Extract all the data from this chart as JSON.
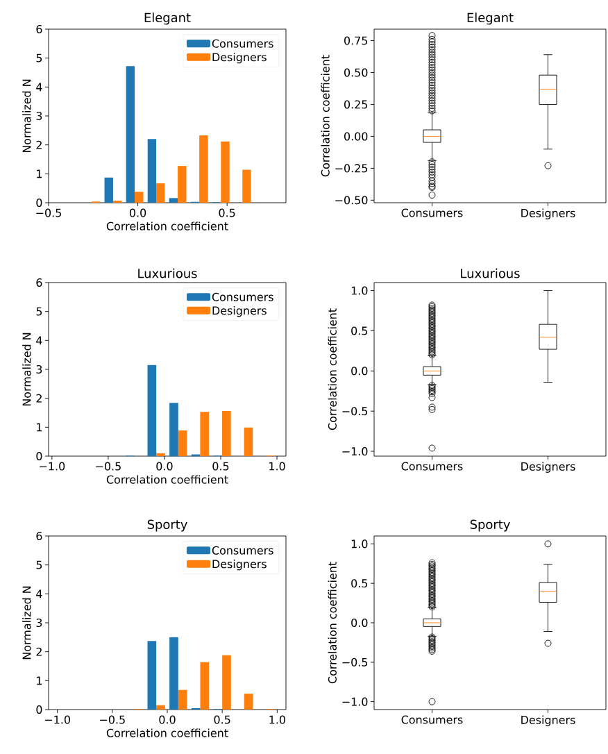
{
  "chart_data": [
    {
      "type": "histogram",
      "title": "Elegant",
      "xlabel": "Correlation coefficient",
      "ylabel": "Normalized N",
      "legend": "top right",
      "bins": [
        -0.44,
        -0.319,
        -0.199,
        -0.078,
        0.043,
        0.163,
        0.284,
        0.405,
        0.526,
        0.646,
        0.767
      ],
      "series": [
        {
          "name": "Consumers",
          "color": "#1f77b4",
          "values": [
            0,
            0,
            0.87,
            4.72,
            2.2,
            0.16,
            0.03,
            0.02,
            0,
            0
          ]
        },
        {
          "name": "Designers",
          "color": "#ff7f0e",
          "values": [
            0,
            0.04,
            0.07,
            0.38,
            0.67,
            1.27,
            2.33,
            2.12,
            1.14,
            0
          ]
        }
      ],
      "xlim": [
        -0.5,
        0.83
      ],
      "xticks": [
        {
          "value": -0.5,
          "label": "−0.5"
        },
        {
          "value": 0,
          "label": "0.0"
        },
        {
          "value": 0.5,
          "label": "0.5"
        }
      ],
      "ylim": [
        0,
        6
      ],
      "yticks": [
        0,
        1,
        2,
        3,
        4,
        5,
        6
      ]
    },
    {
      "type": "box",
      "title": "Elegant",
      "ylabel": "Correlation coefficient",
      "categories": [
        "Consumers",
        "Designers"
      ],
      "boxes": [
        {
          "low": -0.19,
          "q1": -0.047,
          "median": 0,
          "q3": 0.051,
          "high": 0.19,
          "outliers": [
            0.2,
            0.22,
            0.24,
            0.26,
            0.28,
            0.3,
            0.32,
            0.34,
            0.36,
            0.38,
            0.4,
            0.42,
            0.44,
            0.46,
            0.48,
            0.5,
            0.52,
            0.54,
            0.56,
            0.58,
            0.6,
            0.62,
            0.64,
            0.66,
            0.68,
            0.7,
            0.72,
            0.74,
            0.76,
            0.79,
            -0.2,
            -0.22,
            -0.24,
            -0.26,
            -0.28,
            -0.3,
            -0.32,
            -0.35,
            -0.37,
            -0.39,
            -0.4,
            -0.46
          ]
        },
        {
          "low": -0.1,
          "q1": 0.25,
          "median": 0.37,
          "q3": 0.48,
          "high": 0.64,
          "outliers": [
            -0.23
          ]
        }
      ],
      "ylim": [
        -0.52,
        0.84
      ],
      "yticks": [
        {
          "value": -0.5,
          "label": "−0.50"
        },
        {
          "value": -0.25,
          "label": "−0.25"
        },
        {
          "value": 0,
          "label": "0.00"
        },
        {
          "value": 0.25,
          "label": "0.25"
        },
        {
          "value": 0.5,
          "label": "0.50"
        },
        {
          "value": 0.75,
          "label": "0.75"
        }
      ]
    },
    {
      "type": "histogram",
      "title": "Luxurious",
      "xlabel": "Correlation coefficient",
      "ylabel": "Normalized N",
      "legend": "top right",
      "bins": [
        -0.95,
        -0.755,
        -0.56,
        -0.365,
        -0.17,
        0.025,
        0.22,
        0.415,
        0.61,
        0.805,
        1.0
      ],
      "series": [
        {
          "name": "Consumers",
          "color": "#1f77b4",
          "values": [
            0,
            0,
            0,
            0.02,
            3.15,
            1.84,
            0.06,
            0.02,
            0,
            0
          ]
        },
        {
          "name": "Designers",
          "color": "#ff7f0e",
          "values": [
            0,
            0,
            0,
            0,
            0.1,
            0.89,
            1.53,
            1.56,
            0.99,
            0.02
          ]
        }
      ],
      "xlim": [
        -1.03,
        1.08
      ],
      "xticks": [
        {
          "value": -1,
          "label": "−1.0"
        },
        {
          "value": -0.5,
          "label": "−0.5"
        },
        {
          "value": 0,
          "label": "0.0"
        },
        {
          "value": 0.5,
          "label": "0.5"
        },
        {
          "value": 1,
          "label": "1.0"
        }
      ],
      "ylim": [
        0,
        6
      ],
      "yticks": [
        0,
        1,
        2,
        3,
        4,
        5,
        6
      ]
    },
    {
      "type": "box",
      "title": "Luxurious",
      "ylabel": "Correlation coefficient",
      "categories": [
        "Consumers",
        "Designers"
      ],
      "boxes": [
        {
          "low": -0.17,
          "q1": -0.052,
          "median": 0,
          "q3": 0.054,
          "high": 0.19,
          "outliers": [
            0.2,
            0.22,
            0.24,
            0.26,
            0.28,
            0.3,
            0.32,
            0.34,
            0.36,
            0.38,
            0.4,
            0.42,
            0.44,
            0.46,
            0.48,
            0.5,
            0.52,
            0.54,
            0.56,
            0.58,
            0.6,
            0.62,
            0.64,
            0.66,
            0.68,
            0.7,
            0.72,
            0.74,
            0.76,
            0.78,
            0.8,
            0.82,
            -0.18,
            -0.2,
            -0.22,
            -0.24,
            -0.26,
            -0.28,
            -0.33,
            -0.45,
            -0.48,
            -0.96
          ]
        },
        {
          "low": -0.14,
          "q1": 0.27,
          "median": 0.42,
          "q3": 0.58,
          "high": 1.0
        }
      ],
      "ylim": [
        -1.06,
        1.1
      ],
      "yticks": [
        {
          "value": -1,
          "label": "−1.0"
        },
        {
          "value": -0.5,
          "label": "−0.5"
        },
        {
          "value": 0,
          "label": "0.0"
        },
        {
          "value": 0.5,
          "label": "0.5"
        },
        {
          "value": 1,
          "label": "1.0"
        }
      ]
    },
    {
      "type": "histogram",
      "title": "Sporty",
      "xlabel": "Correlation coefficient",
      "ylabel": "Normalized N",
      "legend": "top right",
      "bins": [
        -1.0,
        -0.8,
        -0.6,
        -0.4,
        -0.2,
        0,
        0.2,
        0.4,
        0.6,
        0.8,
        1.0
      ],
      "series": [
        {
          "name": "Consumers",
          "color": "#1f77b4",
          "values": [
            0,
            0,
            0,
            0,
            2.37,
            2.5,
            0.05,
            0.02,
            0,
            0
          ]
        },
        {
          "name": "Designers",
          "color": "#ff7f0e",
          "values": [
            0,
            0,
            0,
            0.02,
            0.15,
            0.68,
            1.64,
            1.88,
            0.55,
            0.02
          ]
        }
      ],
      "xlim": [
        -1.08,
        1.08
      ],
      "xticks": [
        {
          "value": -1,
          "label": "−1.0"
        },
        {
          "value": -0.5,
          "label": "−0.5"
        },
        {
          "value": 0,
          "label": "0.0"
        },
        {
          "value": 0.5,
          "label": "0.5"
        },
        {
          "value": 1,
          "label": "1.0"
        }
      ],
      "ylim": [
        0,
        6
      ],
      "yticks": [
        0,
        1,
        2,
        3,
        4,
        5,
        6
      ]
    },
    {
      "type": "box",
      "title": "Sporty",
      "ylabel": "Correlation coefficient",
      "categories": [
        "Consumers",
        "Designers"
      ],
      "boxes": [
        {
          "low": -0.17,
          "q1": -0.047,
          "median": 0,
          "q3": 0.05,
          "high": 0.19,
          "outliers": [
            0.2,
            0.22,
            0.24,
            0.26,
            0.28,
            0.3,
            0.32,
            0.34,
            0.36,
            0.38,
            0.4,
            0.42,
            0.44,
            0.46,
            0.48,
            0.5,
            0.52,
            0.54,
            0.56,
            0.58,
            0.6,
            0.62,
            0.64,
            0.66,
            0.68,
            0.7,
            0.72,
            0.74,
            0.76,
            -0.18,
            -0.2,
            -0.22,
            -0.24,
            -0.26,
            -0.28,
            -0.3,
            -0.32,
            -0.34,
            -0.36,
            -1.0
          ]
        },
        {
          "low": -0.11,
          "q1": 0.26,
          "median": 0.4,
          "q3": 0.51,
          "high": 0.74,
          "outliers": [
            1.0,
            -0.26
          ]
        }
      ],
      "ylim": [
        -1.1,
        1.1
      ],
      "yticks": [
        {
          "value": -1,
          "label": "−1.0"
        },
        {
          "value": -0.5,
          "label": "−0.5"
        },
        {
          "value": 0,
          "label": "0.0"
        },
        {
          "value": 0.5,
          "label": "0.5"
        },
        {
          "value": 1,
          "label": "1.0"
        }
      ]
    }
  ]
}
